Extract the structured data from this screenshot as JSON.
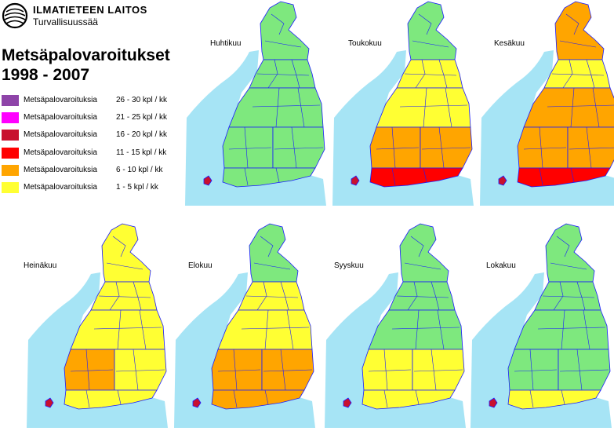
{
  "header": {
    "org_name": "ILMATIETEEN LAITOS",
    "org_sub": "Turvallisuussää",
    "title_line1": "Metsäpalovaroitukset",
    "title_line2": "1998 - 2007"
  },
  "legend": [
    {
      "label": "Metsäpalovaroituksia",
      "range": "26 - 30 kpl / kk",
      "color": "#8e44a8"
    },
    {
      "label": "Metsäpalovaroituksia",
      "range": "21 - 25 kpl / kk",
      "color": "#ff00ff"
    },
    {
      "label": "Metsäpalovaroituksia",
      "range": "16 - 20 kpl / kk",
      "color": "#c8102e"
    },
    {
      "label": "Metsäpalovaroituksia",
      "range": "11 - 15 kpl / kk",
      "color": "#ff0000"
    },
    {
      "label": "Metsäpalovaroituksia",
      "range": "6 - 10 kpl / kk",
      "color": "#ffa500"
    },
    {
      "label": "Metsäpalovaroituksia",
      "range": "1 - 5   kpl / kk",
      "color": "#ffff33"
    }
  ],
  "colors": {
    "sea": "#a6e4f5",
    "green": "#7ee87e",
    "yellow": "#ffff33",
    "orange": "#ffa500",
    "red": "#ff0000",
    "border": "#1a1aff"
  },
  "months": [
    {
      "name": "Huhtikuu",
      "zones": {
        "north": "green",
        "central_north": "green",
        "central": "green",
        "south_west": "green",
        "south_east": "green",
        "coast": "green"
      }
    },
    {
      "name": "Toukokuu",
      "zones": {
        "north": "green",
        "central_north": "yellow",
        "central": "yellow",
        "south_west": "orange",
        "south_east": "orange",
        "coast": "red"
      }
    },
    {
      "name": "Kesäkuu",
      "zones": {
        "north": "orange",
        "central_north": "yellow",
        "central": "orange",
        "south_west": "orange",
        "south_east": "orange",
        "coast": "red"
      }
    },
    {
      "name": "Heinäkuu",
      "zones": {
        "north": "yellow",
        "central_north": "yellow",
        "central": "yellow",
        "south_west": "orange",
        "south_east": "yellow",
        "coast": "yellow"
      }
    },
    {
      "name": "Elokuu",
      "zones": {
        "north": "green",
        "central_north": "yellow",
        "central": "yellow",
        "south_west": "orange",
        "south_east": "orange",
        "coast": "orange"
      }
    },
    {
      "name": "Syyskuu",
      "zones": {
        "north": "green",
        "central_north": "green",
        "central": "green",
        "south_west": "yellow",
        "south_east": "yellow",
        "coast": "yellow"
      }
    },
    {
      "name": "Lokakuu",
      "zones": {
        "north": "green",
        "central_north": "green",
        "central": "green",
        "south_west": "green",
        "south_east": "green",
        "coast": "yellow"
      }
    }
  ]
}
